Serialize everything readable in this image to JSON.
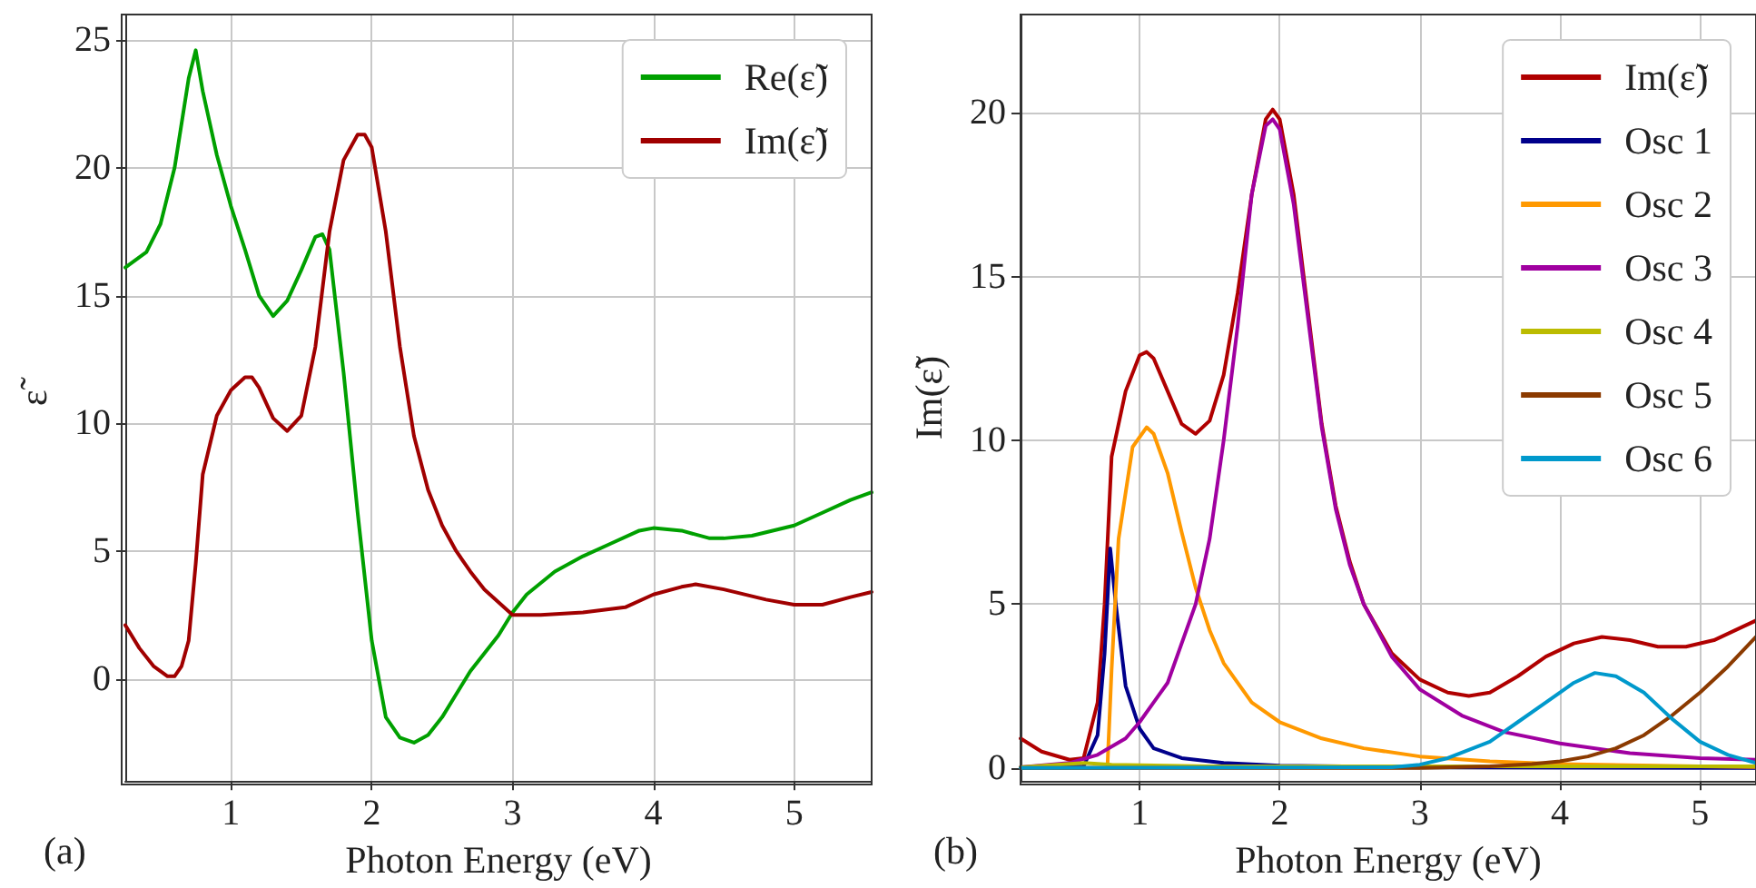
{
  "chart_data": [
    {
      "type": "line",
      "xlabel": "Photon Energy (eV)",
      "ylabel": "ε̃",
      "annotations": [
        "(a)"
      ],
      "legend": "top right",
      "grid": true,
      "xlim": [
        0.25,
        5.55
      ],
      "xticks": [
        1,
        2,
        3,
        4,
        5
      ],
      "ylim": [
        -4,
        26
      ],
      "yticks": [
        0,
        5,
        10,
        15,
        20,
        25
      ],
      "series": [
        {
          "name": "Re(ε̃)",
          "color": "#00a000",
          "x": [
            0.25,
            0.4,
            0.5,
            0.6,
            0.7,
            0.75,
            0.8,
            0.9,
            1.0,
            1.1,
            1.2,
            1.3,
            1.4,
            1.5,
            1.6,
            1.65,
            1.7,
            1.8,
            1.9,
            2.0,
            2.1,
            2.2,
            2.3,
            2.4,
            2.5,
            2.6,
            2.7,
            2.8,
            2.9,
            3.0,
            3.1,
            3.3,
            3.5,
            3.7,
            3.9,
            4.0,
            4.2,
            4.4,
            4.5,
            4.7,
            5.0,
            5.2,
            5.4,
            5.55
          ],
          "values": [
            16.1,
            16.7,
            17.8,
            20,
            23.5,
            24.6,
            23,
            20.5,
            18.5,
            16.8,
            15.0,
            14.2,
            14.8,
            16.0,
            17.3,
            17.4,
            16.8,
            12,
            6.5,
            1.5,
            -1.5,
            -2.3,
            -2.5,
            -2.2,
            -1.5,
            -0.6,
            0.3,
            1.0,
            1.7,
            2.6,
            3.3,
            4.2,
            4.8,
            5.3,
            5.8,
            5.9,
            5.8,
            5.5,
            5.5,
            5.6,
            6.0,
            6.5,
            7.0,
            7.3
          ]
        },
        {
          "name": "Im(ε̃)",
          "color": "#a00000",
          "x": [
            0.25,
            0.35,
            0.45,
            0.55,
            0.6,
            0.65,
            0.7,
            0.75,
            0.8,
            0.9,
            1.0,
            1.1,
            1.15,
            1.2,
            1.3,
            1.4,
            1.5,
            1.6,
            1.7,
            1.8,
            1.9,
            1.95,
            2.0,
            2.1,
            2.2,
            2.3,
            2.4,
            2.5,
            2.6,
            2.7,
            2.8,
            2.9,
            3.0,
            3.2,
            3.5,
            3.8,
            4.0,
            4.2,
            4.3,
            4.5,
            4.8,
            5.0,
            5.2,
            5.4,
            5.55
          ],
          "values": [
            2.1,
            1.2,
            0.5,
            0.1,
            0.1,
            0.5,
            1.5,
            4.5,
            8,
            10.3,
            11.3,
            11.8,
            11.8,
            11.4,
            10.2,
            9.7,
            10.3,
            13,
            17.5,
            20.3,
            21.3,
            21.3,
            20.8,
            17.5,
            13,
            9.5,
            7.4,
            6,
            5,
            4.2,
            3.5,
            3.0,
            2.5,
            2.5,
            2.6,
            2.8,
            3.3,
            3.6,
            3.7,
            3.5,
            3.1,
            2.9,
            2.9,
            3.2,
            3.4
          ]
        }
      ]
    },
    {
      "type": "line",
      "xlabel": "Photon Energy (eV)",
      "ylabel": "Im(ε̃)",
      "annotations": [
        "(b)"
      ],
      "legend": "top right",
      "grid": true,
      "xlim": [
        0.15,
        5.4
      ],
      "xticks": [
        1,
        2,
        3,
        4,
        5
      ],
      "ylim": [
        -0.4,
        23
      ],
      "yticks": [
        0,
        5,
        10,
        15,
        20
      ],
      "series": [
        {
          "name": "Im(ε̃)",
          "color": "#b00000",
          "x": [
            0.15,
            0.3,
            0.5,
            0.6,
            0.7,
            0.75,
            0.8,
            0.9,
            1.0,
            1.05,
            1.1,
            1.2,
            1.3,
            1.4,
            1.5,
            1.6,
            1.7,
            1.8,
            1.9,
            1.95,
            2.0,
            2.1,
            2.2,
            2.3,
            2.4,
            2.5,
            2.6,
            2.8,
            3.0,
            3.2,
            3.35,
            3.5,
            3.7,
            3.9,
            4.1,
            4.3,
            4.5,
            4.7,
            4.9,
            5.1,
            5.3,
            5.4
          ],
          "values": [
            0.9,
            0.5,
            0.25,
            0.3,
            2,
            5,
            9.5,
            11.5,
            12.6,
            12.7,
            12.5,
            11.5,
            10.5,
            10.2,
            10.6,
            12,
            14.5,
            17.5,
            19.8,
            20.1,
            19.8,
            17.5,
            14,
            10.5,
            8,
            6.3,
            5.0,
            3.5,
            2.7,
            2.3,
            2.2,
            2.3,
            2.8,
            3.4,
            3.8,
            4.0,
            3.9,
            3.7,
            3.7,
            3.9,
            4.3,
            4.5
          ]
        },
        {
          "name": "Osc 1",
          "color": "#00008b",
          "x": [
            0.15,
            0.6,
            0.7,
            0.75,
            0.79,
            0.83,
            0.9,
            1.0,
            1.1,
            1.3,
            1.6,
            2.0,
            3.0,
            5.4
          ],
          "values": [
            0,
            0.05,
            1,
            3.5,
            6.7,
            5,
            2.5,
            1.2,
            0.6,
            0.3,
            0.15,
            0.07,
            0.02,
            0
          ]
        },
        {
          "name": "Osc 2",
          "color": "#ff9900",
          "x": [
            0.15,
            0.77,
            0.8,
            0.85,
            0.95,
            1.05,
            1.1,
            1.2,
            1.3,
            1.4,
            1.5,
            1.6,
            1.8,
            2.0,
            2.3,
            2.6,
            3.0,
            3.5,
            4.0,
            5.0,
            5.4
          ],
          "values": [
            0,
            0,
            3,
            7,
            9.8,
            10.4,
            10.2,
            9,
            7.2,
            5.5,
            4.2,
            3.2,
            2.0,
            1.4,
            0.9,
            0.6,
            0.35,
            0.2,
            0.12,
            0.05,
            0.03
          ]
        },
        {
          "name": "Osc 3",
          "color": "#a000a0",
          "x": [
            0.15,
            0.5,
            0.7,
            0.9,
            1.0,
            1.2,
            1.4,
            1.5,
            1.6,
            1.7,
            1.8,
            1.9,
            1.95,
            2.0,
            2.1,
            2.2,
            2.3,
            2.4,
            2.5,
            2.6,
            2.8,
            3.0,
            3.3,
            3.6,
            4.0,
            4.5,
            5.0,
            5.4
          ],
          "values": [
            0.02,
            0.15,
            0.4,
            0.9,
            1.4,
            2.6,
            5,
            7,
            10,
            13.5,
            17.5,
            19.6,
            19.8,
            19.5,
            17.2,
            13.8,
            10.4,
            7.9,
            6.2,
            5.0,
            3.4,
            2.4,
            1.6,
            1.1,
            0.75,
            0.45,
            0.3,
            0.25
          ]
        },
        {
          "name": "Osc 4",
          "color": "#bbbb00",
          "x": [
            0.15,
            0.6,
            0.8,
            1.5,
            5.4
          ],
          "values": [
            0.02,
            0.15,
            0.1,
            0.05,
            0.05
          ]
        },
        {
          "name": "Osc 5",
          "color": "#8b3a00",
          "x": [
            0.15,
            3.0,
            3.5,
            3.8,
            4.0,
            4.2,
            4.4,
            4.6,
            4.8,
            5.0,
            5.2,
            5.4
          ],
          "values": [
            0,
            0,
            0.05,
            0.12,
            0.2,
            0.35,
            0.6,
            1.0,
            1.6,
            2.3,
            3.1,
            4.0
          ]
        },
        {
          "name": "Osc 6",
          "color": "#0099cc",
          "x": [
            0.15,
            2.8,
            3.0,
            3.2,
            3.5,
            3.7,
            3.9,
            4.1,
            4.25,
            4.4,
            4.6,
            4.8,
            5.0,
            5.2,
            5.4
          ],
          "values": [
            0,
            0.02,
            0.1,
            0.3,
            0.8,
            1.4,
            2.0,
            2.6,
            2.9,
            2.8,
            2.3,
            1.5,
            0.8,
            0.4,
            0.15
          ]
        }
      ]
    }
  ]
}
